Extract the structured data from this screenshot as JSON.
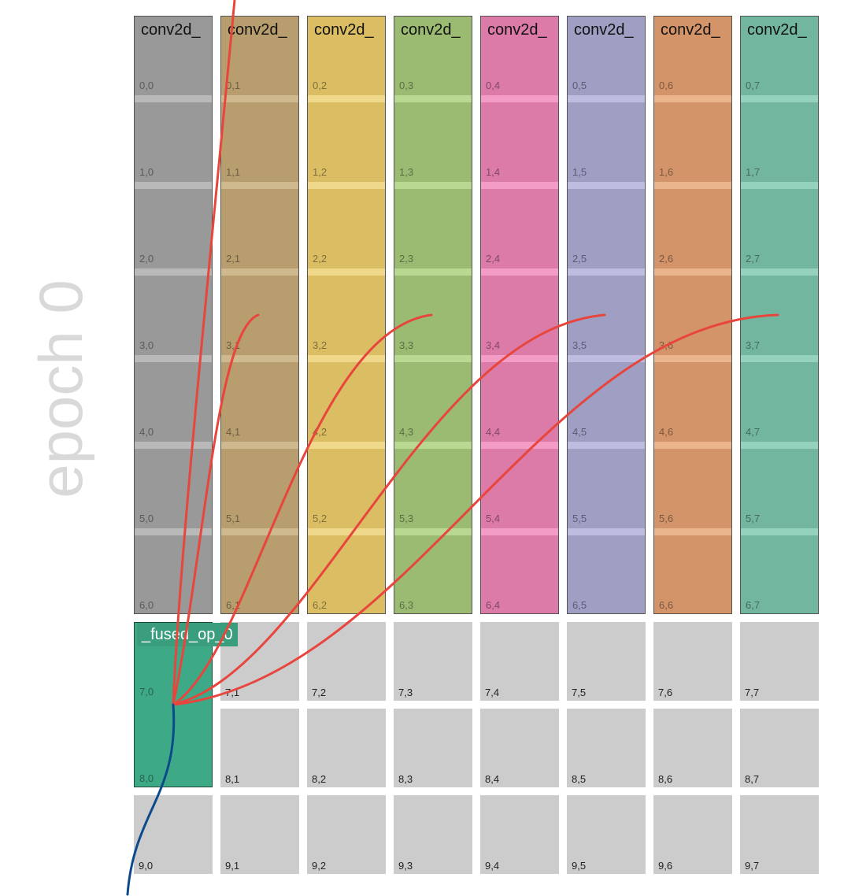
{
  "epoch_label": "epoch 0",
  "grid": {
    "rows": 10,
    "cols": 8,
    "empty_color": "#cccccc"
  },
  "operators": [
    {
      "label": "conv2d_",
      "color": "#999999",
      "stripe": "#b9b9b9",
      "col": 0
    },
    {
      "label": "conv2d_",
      "color": "#b89e6e",
      "stripe": "#cfb98e",
      "col": 1
    },
    {
      "label": "conv2d_",
      "color": "#dbbd64",
      "stripe": "#f0d88a",
      "col": 2
    },
    {
      "label": "conv2d_",
      "color": "#9bbb73",
      "stripe": "#b9d993",
      "col": 3
    },
    {
      "label": "conv2d_",
      "color": "#dc7aa8",
      "stripe": "#f39cc5",
      "col": 4
    },
    {
      "label": "conv2d_",
      "color": "#9f9ec3",
      "stripe": "#bebde0",
      "col": 5
    },
    {
      "label": "conv2d_",
      "color": "#d4946a",
      "stripe": "#eab48c",
      "col": 6
    },
    {
      "label": "conv2d_",
      "color": "#73b6a0",
      "stripe": "#95d2bd",
      "col": 7
    }
  ],
  "fused_op": {
    "label": "_fused_op_0",
    "color": "#3ea987",
    "col": 0,
    "rows": [
      7,
      8
    ]
  },
  "edge_colors": {
    "input": "#e8453c",
    "output": "#0d4a8c"
  }
}
